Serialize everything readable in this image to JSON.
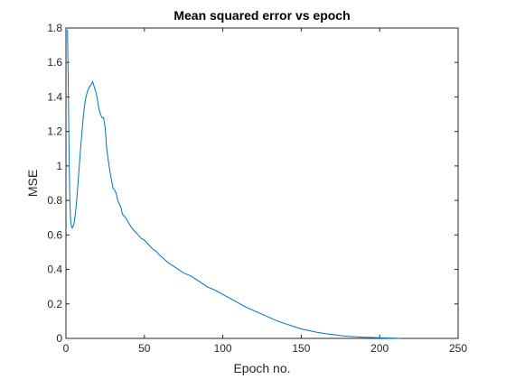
{
  "chart_data": {
    "type": "line",
    "title": "Mean squared error vs epoch",
    "xlabel": "Epoch no.",
    "ylabel": "MSE",
    "xlim": [
      0,
      250
    ],
    "ylim": [
      0,
      1.8
    ],
    "xticks": [
      0,
      50,
      100,
      150,
      200,
      250
    ],
    "xtick_labels": [
      "0",
      "50",
      "100",
      "150",
      "200",
      "250"
    ],
    "yticks": [
      0,
      0.2,
      0.4,
      0.6,
      0.8,
      1.0,
      1.2,
      1.4,
      1.6,
      1.8
    ],
    "ytick_labels": [
      "0",
      "0.2",
      "0.4",
      "0.6",
      "0.8",
      "1",
      "1.2",
      "1.4",
      "1.6",
      "1.8"
    ],
    "grid": false,
    "box": true,
    "series": [
      {
        "name": "MSE",
        "color": "#0072BD",
        "x": [
          1,
          1.5,
          2,
          2.5,
          3,
          3.5,
          4,
          5,
          6,
          7,
          8,
          9,
          10,
          11,
          12,
          13,
          14,
          15,
          16,
          17,
          18,
          19,
          20,
          21,
          22,
          23,
          24,
          25,
          26,
          27,
          28,
          29,
          30,
          31,
          32,
          33,
          34,
          35,
          36,
          38,
          40,
          42,
          44,
          46,
          48,
          50,
          52,
          55,
          58,
          60,
          65,
          70,
          75,
          80,
          85,
          90,
          95,
          100,
          105,
          110,
          115,
          120,
          125,
          130,
          135,
          140,
          145,
          150,
          155,
          160,
          165,
          170,
          175,
          180,
          185,
          190,
          195,
          200,
          205,
          210,
          213
        ],
        "values": [
          1.79,
          1.45,
          1.05,
          0.8,
          0.68,
          0.65,
          0.64,
          0.66,
          0.72,
          0.82,
          0.94,
          1.06,
          1.18,
          1.28,
          1.36,
          1.41,
          1.44,
          1.46,
          1.47,
          1.49,
          1.46,
          1.43,
          1.39,
          1.33,
          1.3,
          1.28,
          1.28,
          1.22,
          1.1,
          1.03,
          0.97,
          0.92,
          0.87,
          0.86,
          0.84,
          0.8,
          0.78,
          0.76,
          0.72,
          0.7,
          0.67,
          0.64,
          0.62,
          0.6,
          0.58,
          0.57,
          0.55,
          0.52,
          0.5,
          0.48,
          0.44,
          0.41,
          0.38,
          0.36,
          0.33,
          0.3,
          0.28,
          0.255,
          0.23,
          0.205,
          0.18,
          0.16,
          0.14,
          0.12,
          0.1,
          0.085,
          0.07,
          0.055,
          0.045,
          0.035,
          0.028,
          0.022,
          0.016,
          0.012,
          0.009,
          0.007,
          0.005,
          0.003,
          0.002,
          0.001,
          0.0
        ]
      }
    ]
  }
}
